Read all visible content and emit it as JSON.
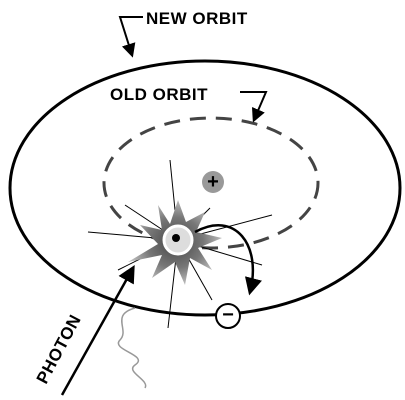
{
  "labels": {
    "new_orbit": "NEW ORBIT",
    "old_orbit": "OLD ORBIT",
    "photon": "PHOTON",
    "nucleus": "+",
    "electron": "−"
  }
}
